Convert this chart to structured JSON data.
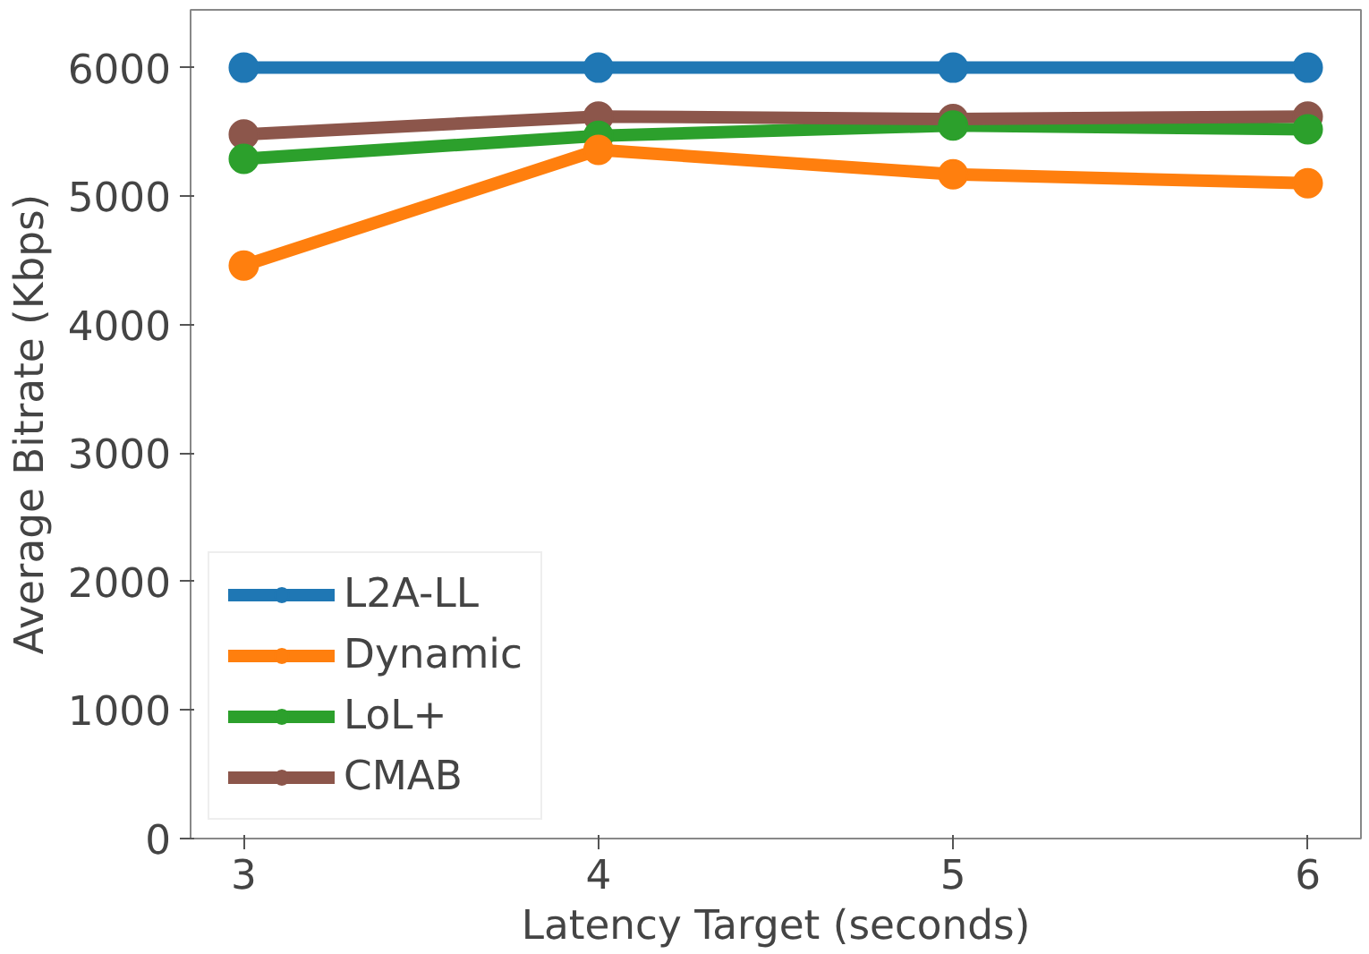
{
  "chart_data": {
    "type": "line",
    "xlabel": "Latency Target (seconds)",
    "ylabel": "Average Bitrate (Kbps)",
    "x": [
      3,
      4,
      5,
      6
    ],
    "xlim": [
      2.85,
      6.15
    ],
    "xticks": [
      3,
      4,
      5,
      6
    ],
    "ylim": [
      0,
      6450
    ],
    "yticks": [
      0,
      1000,
      2000,
      3000,
      4000,
      5000,
      6000
    ],
    "grid": false,
    "legend": "bottom left",
    "marker": "circle",
    "line_style": "solid",
    "series": [
      {
        "name": "L2A-LL",
        "color": "#1f77b4",
        "values": [
          6000,
          6000,
          6000,
          6000
        ]
      },
      {
        "name": "Dynamic",
        "color": "#ff7f0e",
        "values": [
          4460,
          5360,
          5170,
          5100
        ]
      },
      {
        "name": "LoL+",
        "color": "#2ca02c",
        "values": [
          5290,
          5470,
          5550,
          5520
        ]
      },
      {
        "name": "CMAB",
        "color": "#8c564b",
        "values": [
          5480,
          5620,
          5600,
          5620
        ]
      }
    ]
  }
}
